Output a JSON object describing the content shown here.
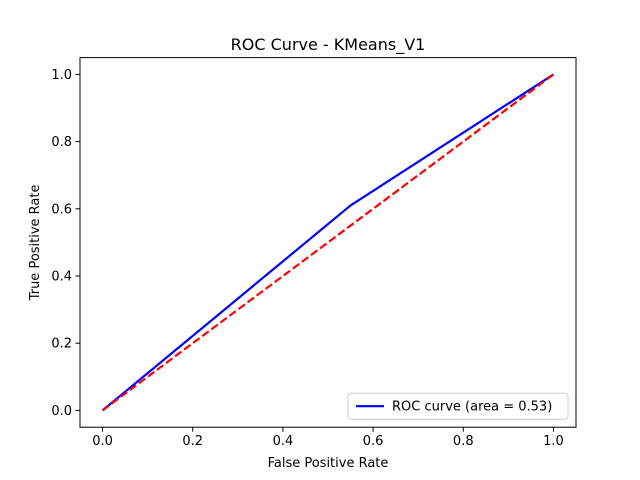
{
  "chart_data": {
    "type": "line",
    "title": "ROC Curve - KMeans_V1",
    "xlabel": "False Positive Rate",
    "ylabel": "True Positive Rate",
    "xlim": [
      -0.05,
      1.05
    ],
    "ylim": [
      -0.05,
      1.05
    ],
    "xticks": [
      0.0,
      0.2,
      0.4,
      0.6,
      0.8,
      1.0
    ],
    "yticks": [
      0.0,
      0.2,
      0.4,
      0.6,
      0.8,
      1.0
    ],
    "xtick_labels": [
      "0.0",
      "0.2",
      "0.4",
      "0.6",
      "0.8",
      "1.0"
    ],
    "ytick_labels": [
      "0.0",
      "0.2",
      "0.4",
      "0.6",
      "0.8",
      "1.0"
    ],
    "grid": false,
    "legend_position": "bottom-right",
    "series": [
      {
        "name": "ROC curve (area = 0.53)",
        "color": "#0000ff",
        "style": "solid",
        "x": [
          0.0,
          0.55,
          1.0
        ],
        "y": [
          0.0,
          0.61,
          1.0
        ]
      },
      {
        "color": "#ff0000",
        "style": "dashed",
        "x": [
          0.0,
          1.0
        ],
        "y": [
          0.0,
          1.0
        ]
      }
    ]
  }
}
